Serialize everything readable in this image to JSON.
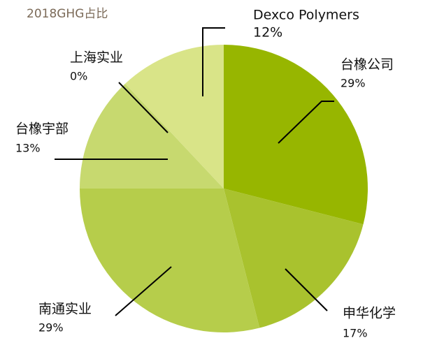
{
  "chart_data": {
    "type": "pie",
    "title": "2018GHG占比",
    "categories": [
      "台橡公司",
      "申华化学",
      "南通实业",
      "台橡宇部",
      "上海实业",
      "Dexco Polymers"
    ],
    "values": [
      29,
      17,
      29,
      13,
      0,
      12
    ],
    "value_labels": [
      "29%",
      "17%",
      "29%",
      "13%",
      "0%",
      "12%"
    ],
    "colors": [
      "#97b600",
      "#a9c22e",
      "#b6cd4b",
      "#c7d96f",
      "#d3e180",
      "#d9e488"
    ]
  }
}
